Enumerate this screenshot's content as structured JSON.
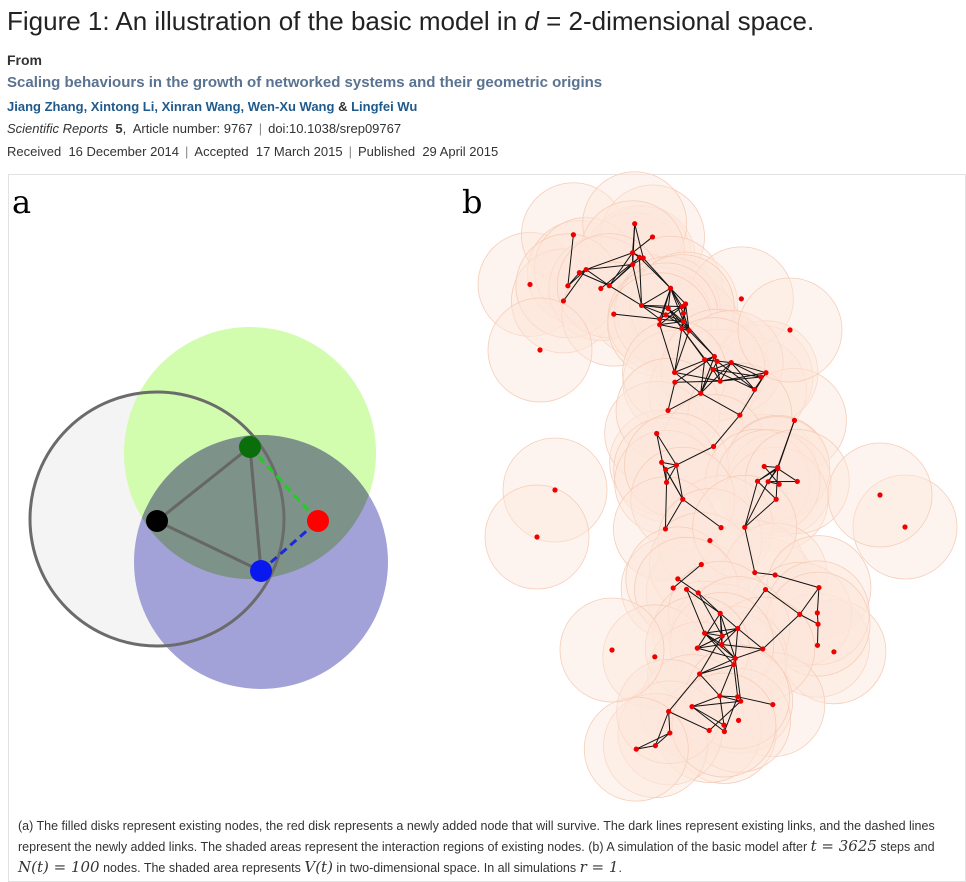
{
  "figure": {
    "title_prefix": "Figure 1: An illustration of the basic model in ",
    "title_var": "d",
    "title_suffix": " = 2-dimensional space."
  },
  "from_label": "From",
  "article_title": "Scaling behaviours in the growth of networked systems and their geometric origins",
  "authors": [
    "Jiang Zhang",
    "Xintong Li",
    "Xinran Wang",
    "Wen-Xu Wang",
    "Lingfei Wu"
  ],
  "authors_sep": ", ",
  "authors_amp": " & ",
  "journal": {
    "name": "Scientific Reports",
    "volume": "5",
    "article": "Article number: 9767",
    "doi": "doi:10.1038/srep09767"
  },
  "dates": {
    "received_label": "Received",
    "received": "16 December 2014",
    "accepted_label": "Accepted",
    "accepted": "17 March 2015",
    "published_label": "Published",
    "published": "29 April 2015"
  },
  "panels": {
    "a": "a",
    "b": "b"
  },
  "colors": {
    "green_region": "#d2fcae",
    "blue_region": "#a2a2d8",
    "overlap": "#7d9289",
    "new_node": "#ff0000",
    "region_b": "#fde7dc"
  },
  "caption": {
    "part1": "(a) The filled disks represent existing nodes, the red disk represents a newly added node that will survive. The dark lines represent existing links, and the dashed lines represent the newly added links. The shaded areas represent the interaction regions of existing nodes. (b) A simulation of the basic model after ",
    "m1": "t = 3625",
    "part2": " steps and ",
    "m2": "N(t) = 100",
    "part3": " nodes. The shaded area represents ",
    "m3": "V(t)",
    "part4": " in two-dimensional space. In all simulations ",
    "m4": "r = 1",
    "part5": "."
  }
}
